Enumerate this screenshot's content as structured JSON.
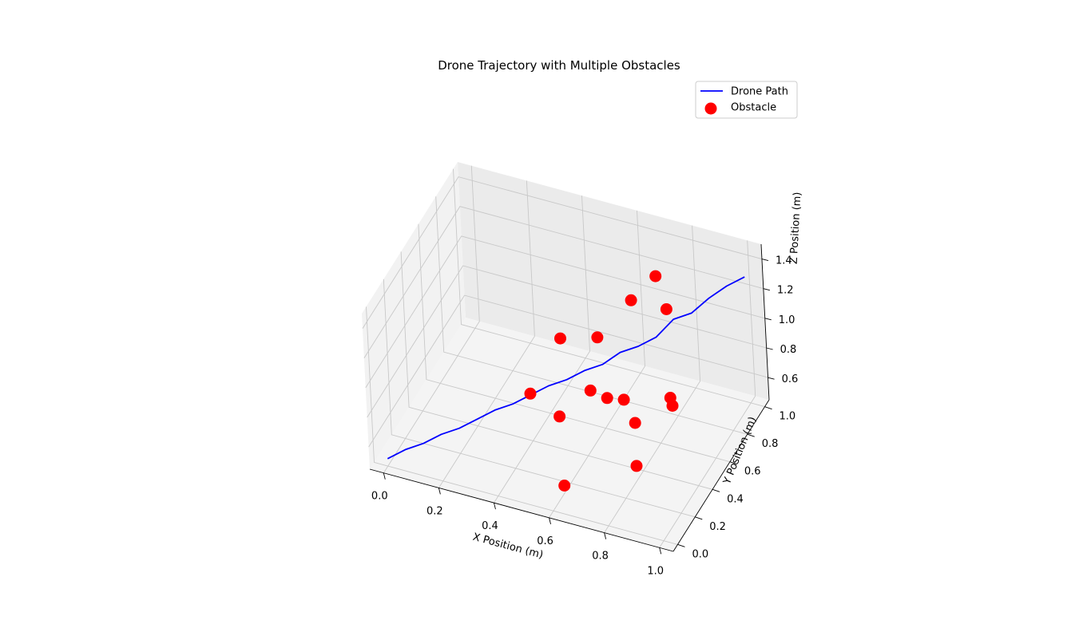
{
  "chart_data": {
    "type": "scatter",
    "projection": "3d",
    "title": "Drone Trajectory with Multiple Obstacles",
    "xlabel": "X Position (m)",
    "ylabel": "Y Position (m)",
    "zlabel": "Z Position (m)",
    "xlim": [
      -0.05,
      1.05
    ],
    "ylim": [
      -0.05,
      1.05
    ],
    "zlim": [
      0.45,
      1.5
    ],
    "x_ticks": [
      "0.0",
      "0.2",
      "0.4",
      "0.6",
      "0.8",
      "1.0"
    ],
    "y_ticks": [
      "0.0",
      "0.2",
      "0.4",
      "0.6",
      "0.8",
      "1.0"
    ],
    "z_ticks": [
      "0.6",
      "0.8",
      "1.0",
      "1.2",
      "1.4"
    ],
    "grid": true,
    "legend_position": "top-right",
    "series": [
      {
        "name": "Drone Path",
        "kind": "line",
        "color": "#0000ff",
        "x": [
          0.0,
          0.05,
          0.1,
          0.15,
          0.2,
          0.25,
          0.3,
          0.35,
          0.4,
          0.45,
          0.5,
          0.55,
          0.6,
          0.65,
          0.7,
          0.75,
          0.8,
          0.85,
          0.9,
          0.95,
          1.0
        ],
        "y": [
          0.0,
          0.05,
          0.1,
          0.15,
          0.2,
          0.25,
          0.3,
          0.35,
          0.4,
          0.45,
          0.5,
          0.55,
          0.6,
          0.65,
          0.7,
          0.75,
          0.8,
          0.85,
          0.9,
          0.95,
          1.0
        ],
        "z": [
          0.5,
          0.54,
          0.56,
          0.6,
          0.62,
          0.66,
          0.7,
          0.72,
          0.76,
          0.8,
          0.82,
          0.86,
          0.88,
          0.94,
          0.96,
          1.0,
          1.1,
          1.12,
          1.2,
          1.26,
          1.3
        ]
      },
      {
        "name": "Obstacle",
        "kind": "scatter",
        "color": "#ff0000",
        "x": [
          0.55,
          0.44,
          0.6,
          0.77,
          0.62,
          0.6,
          0.79,
          0.71,
          0.86,
          0.85,
          0.71,
          0.55,
          0.68,
          0.74,
          0.81
        ],
        "y": [
          0.26,
          0.28,
          0.13,
          0.72,
          0.4,
          0.56,
          0.76,
          0.62,
          0.57,
          0.58,
          0.49,
          0.31,
          0.4,
          0.51,
          0.3
        ],
        "z": [
          0.82,
          0.9,
          0.5,
          1.45,
          0.9,
          1.1,
          1.2,
          1.35,
          0.76,
          0.8,
          0.8,
          1.3,
          0.88,
          0.64,
          0.58
        ]
      }
    ]
  }
}
